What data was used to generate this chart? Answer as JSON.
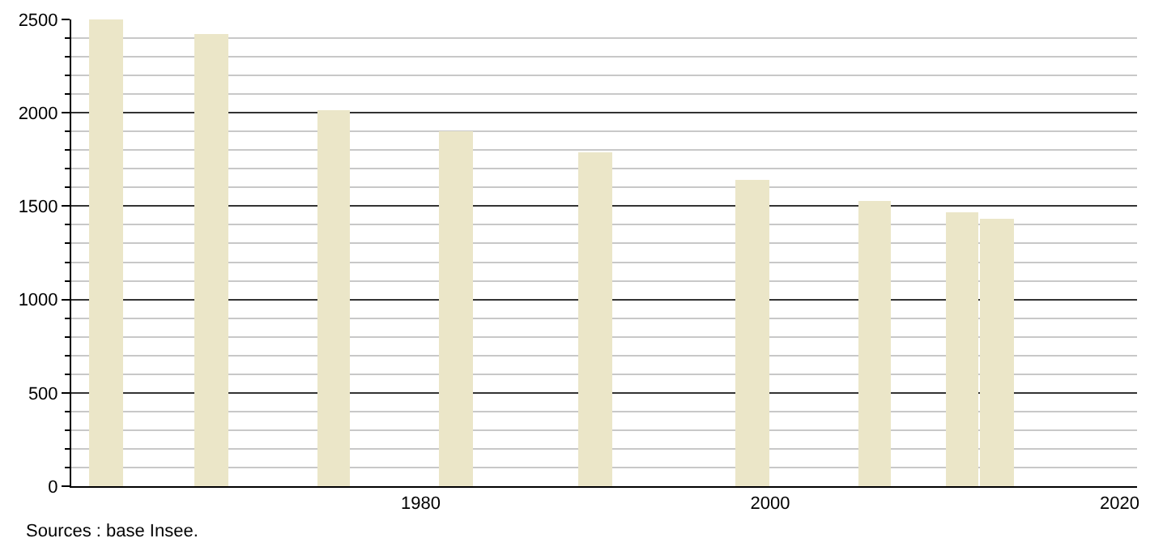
{
  "chart_data": {
    "type": "bar",
    "x": [
      1962,
      1968,
      1975,
      1982,
      1990,
      1999,
      2006,
      2011,
      2013
    ],
    "values": [
      2500,
      2420,
      2010,
      1900,
      1790,
      1640,
      1530,
      1470,
      1430
    ],
    "color": "#ebe6c8",
    "xlim": [
      1960,
      2021
    ],
    "xticks": [
      1980,
      2000,
      2020
    ],
    "ylim": [
      0,
      2500
    ],
    "yticks": [
      0,
      {
        "value": 100,
        "label": null
      },
      {
        "value": 200,
        "label": null
      },
      {
        "value": 300,
        "label": null
      },
      {
        "value": 400,
        "label": null
      },
      500,
      {
        "value": 600,
        "label": null
      },
      {
        "value": 700,
        "label": null
      },
      {
        "value": 800,
        "label": null
      },
      {
        "value": 900,
        "label": null
      },
      1000,
      {
        "value": 1100,
        "label": null
      },
      {
        "value": 1200,
        "label": null
      },
      {
        "value": 1300,
        "label": null
      },
      {
        "value": 1400,
        "label": null
      },
      1500,
      {
        "value": 1600,
        "label": null
      },
      {
        "value": 1700,
        "label": null
      },
      {
        "value": 1800,
        "label": null
      },
      {
        "value": 1900,
        "label": null
      },
      2000,
      {
        "value": 2100,
        "label": null
      },
      {
        "value": 2200,
        "label": null
      },
      {
        "value": 2300,
        "label": null
      },
      {
        "value": 2400,
        "label": null
      },
      2500
    ],
    "grid": "y",
    "annotations": [
      "Sources : base Insee."
    ]
  }
}
